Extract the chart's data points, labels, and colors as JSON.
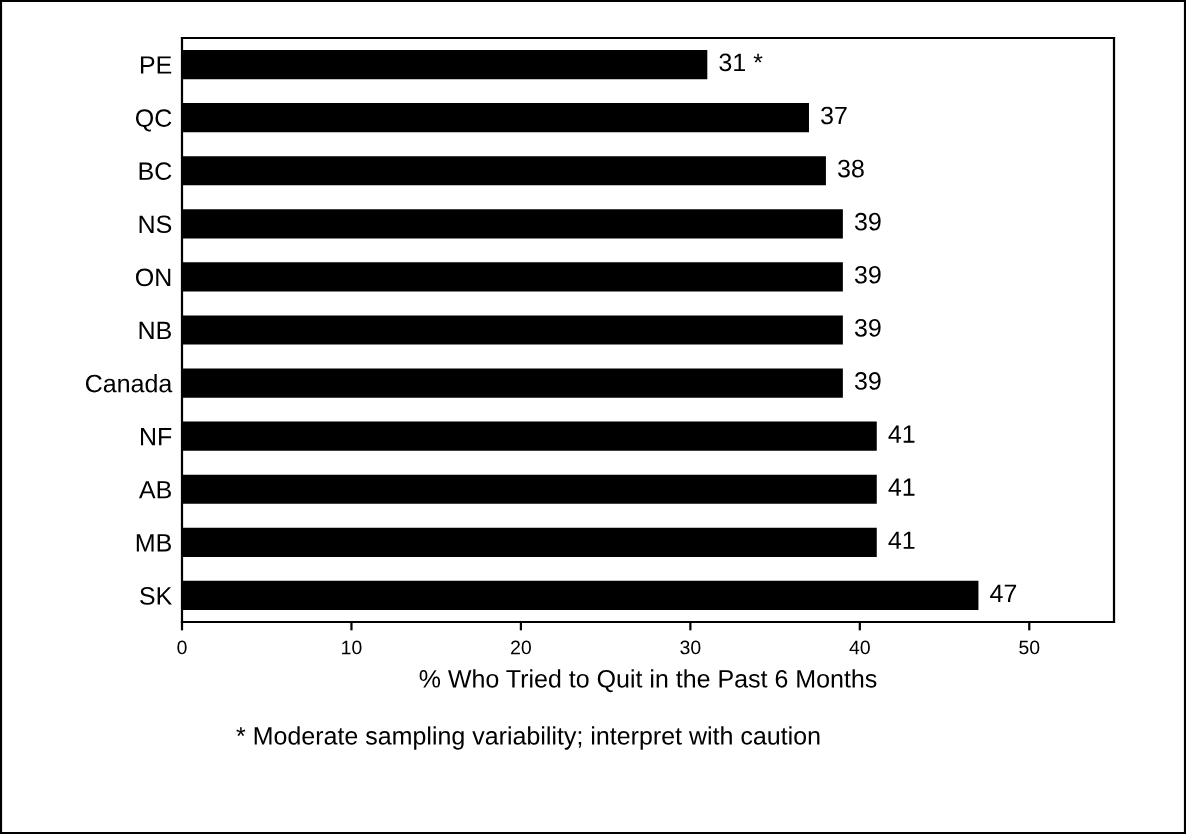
{
  "chart_data": {
    "type": "bar",
    "orientation": "horizontal",
    "categories": [
      "PE",
      "QC",
      "BC",
      "NS",
      "ON",
      "NB",
      "Canada",
      "NF",
      "AB",
      "MB",
      "SK"
    ],
    "values": [
      31,
      37,
      38,
      39,
      39,
      39,
      39,
      41,
      41,
      41,
      47
    ],
    "value_labels": [
      "31 *",
      "37",
      "38",
      "39",
      "39",
      "39",
      "39",
      "41",
      "41",
      "41",
      "47"
    ],
    "color": "#000000",
    "xlim": [
      0,
      55
    ],
    "xticks": [
      0,
      10,
      20,
      30,
      40,
      50
    ],
    "xlabel": "% Who Tried to Quit in the Past 6 Months",
    "annotations": [
      "* Moderate sampling variability; interpret with caution"
    ],
    "grid": false,
    "legend": false
  }
}
